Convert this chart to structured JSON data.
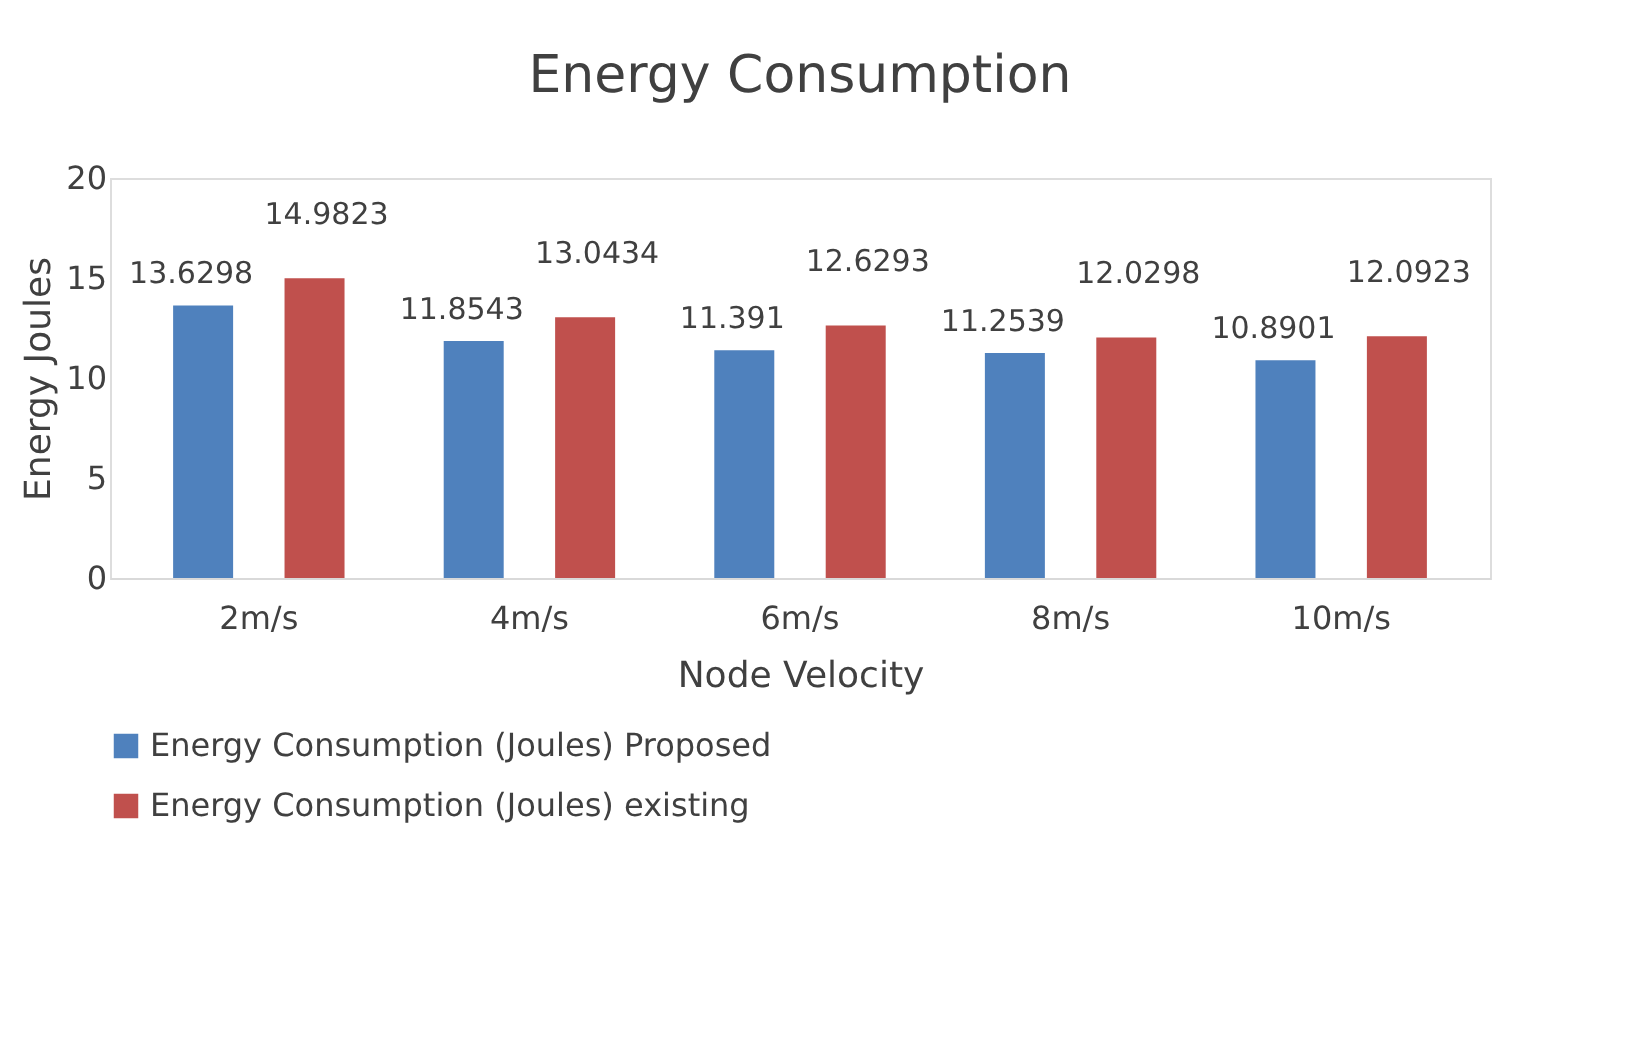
{
  "chart_data": {
    "type": "bar",
    "title": "Energy Consumption",
    "xlabel": "Node Velocity",
    "ylabel": "Energy  Joules",
    "categories": [
      "2m/s",
      "4m/s",
      "6m/s",
      "8m/s",
      "10m/s"
    ],
    "series": [
      {
        "name": "Energy Consumption (Joules) Proposed",
        "color": "#4f81bd",
        "values": [
          13.6298,
          11.8543,
          11.391,
          11.2539,
          10.8901
        ]
      },
      {
        "name": "Energy Consumption (Joules) existing",
        "color": "#c0504d",
        "values": [
          14.9823,
          13.0434,
          12.6293,
          12.0298,
          12.0923
        ]
      }
    ],
    "ylim": [
      0,
      20
    ],
    "yticks": [
      0,
      5,
      10,
      15,
      20
    ],
    "grid": false,
    "legend": "bottom",
    "data_labels": true
  }
}
